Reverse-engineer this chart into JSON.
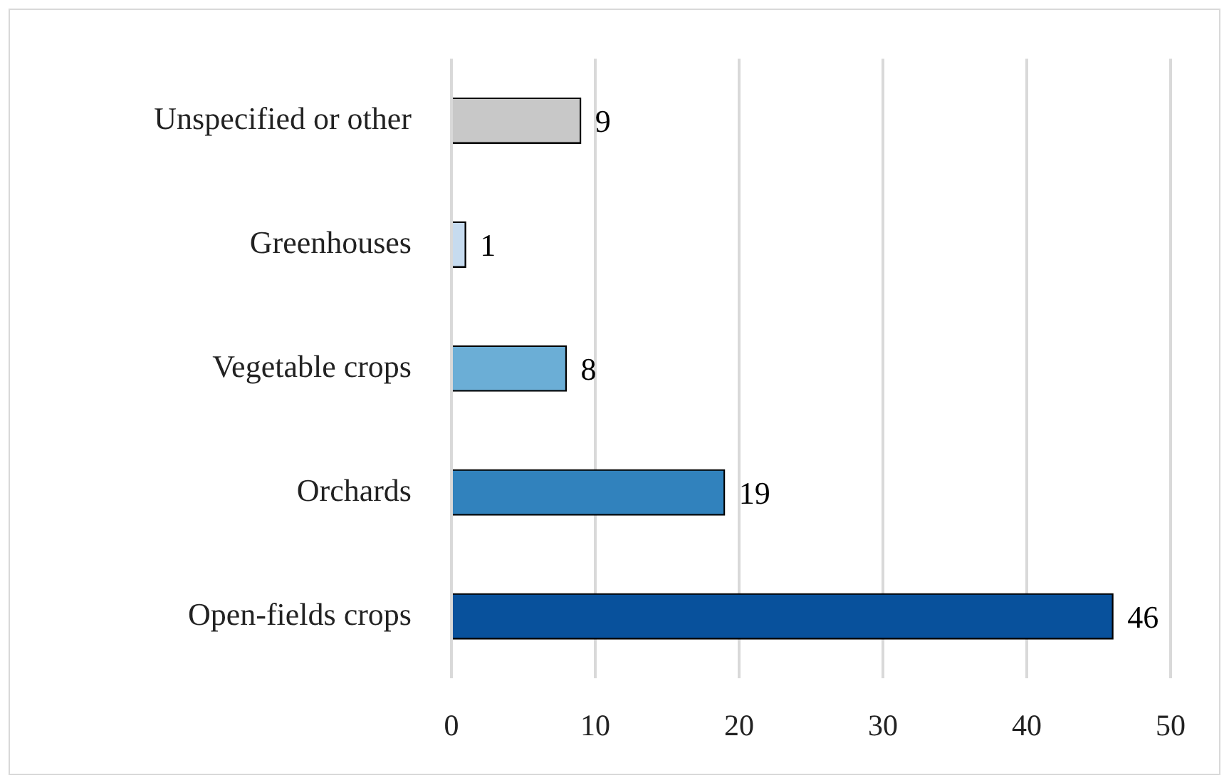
{
  "chart_data": {
    "type": "bar",
    "orientation": "horizontal",
    "categories": [
      "Unspecified or other",
      "Greenhouses",
      "Vegetable crops",
      "Orchards",
      "Open-fields crops"
    ],
    "values": [
      9,
      1,
      8,
      19,
      46
    ],
    "colors": [
      "#c8c8c8",
      "#c6dbef",
      "#6baed6",
      "#3182bd",
      "#08519c"
    ],
    "xlim": [
      0,
      50
    ],
    "xticks": [
      0,
      10,
      20,
      30,
      40,
      50
    ],
    "grid": "x",
    "legend": false,
    "data_labels": true
  }
}
